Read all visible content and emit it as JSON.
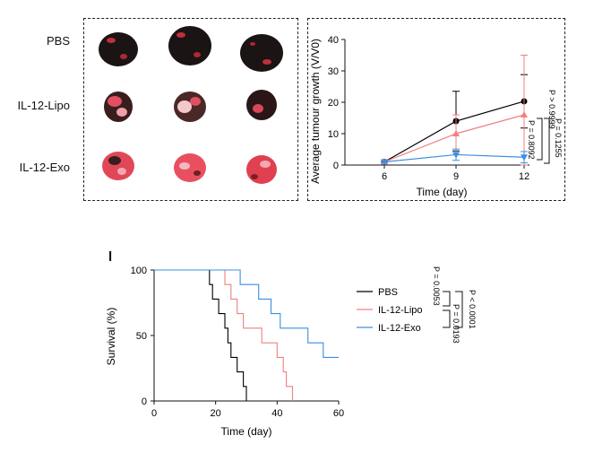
{
  "panel_h": {
    "letter": "",
    "rows": [
      "PBS",
      "IL-12-Lipo",
      "IL-12-Exo"
    ]
  },
  "chart_data": [
    {
      "type": "line",
      "panel": "",
      "ylabel": "Average tumour growth (V/V0)",
      "xlabel": "Time (day)",
      "x": [
        6,
        9,
        12
      ],
      "xticks": [
        "6",
        "9",
        "12"
      ],
      "ylim": [
        0,
        40
      ],
      "yticks": [
        "0",
        "10",
        "20",
        "30",
        "40"
      ],
      "series": [
        {
          "name": "PBS",
          "color": "#000000",
          "marker": "circle",
          "values": [
            1,
            14,
            20.3
          ],
          "err": [
            0.3,
            9.5,
            8.5
          ]
        },
        {
          "name": "IL-12-Lipo",
          "color": "#f08080",
          "marker": "triangle-up",
          "values": [
            1,
            10,
            16
          ],
          "err": [
            0.3,
            6,
            19
          ]
        },
        {
          "name": "IL-12-Exo",
          "color": "#3b8fe0",
          "marker": "triangle-down",
          "values": [
            1,
            3.3,
            2.5
          ],
          "err": [
            0.2,
            1.8,
            1.8
          ]
        }
      ],
      "annotations": [
        "P > 0.9999",
        "P = 0.8092",
        "P = 0.1255"
      ]
    },
    {
      "type": "line",
      "panel": "l",
      "ylabel": "Survival (%)",
      "xlabel": "Time (day)",
      "xlim": [
        0,
        60
      ],
      "ylim": [
        0,
        100
      ],
      "xticks": [
        "0",
        "20",
        "40",
        "60"
      ],
      "yticks": [
        "0",
        "50",
        "100"
      ],
      "legend_placement": "right",
      "series": [
        {
          "name": "PBS",
          "color": "#000000",
          "steps": [
            [
              0,
              100
            ],
            [
              18,
              100
            ],
            [
              18,
              88.9
            ],
            [
              19,
              88.9
            ],
            [
              19,
              77.8
            ],
            [
              21,
              77.8
            ],
            [
              21,
              66.7
            ],
            [
              23,
              66.7
            ],
            [
              23,
              55.6
            ],
            [
              24,
              55.6
            ],
            [
              24,
              44.4
            ],
            [
              25,
              44.4
            ],
            [
              25,
              33.3
            ],
            [
              27,
              33.3
            ],
            [
              27,
              22.2
            ],
            [
              29,
              22.2
            ],
            [
              29,
              11.1
            ],
            [
              30,
              11.1
            ],
            [
              30,
              0
            ]
          ]
        },
        {
          "name": "IL-12-Lipo",
          "color": "#f08080",
          "steps": [
            [
              0,
              100
            ],
            [
              23,
              100
            ],
            [
              23,
              88.9
            ],
            [
              25,
              88.9
            ],
            [
              25,
              77.8
            ],
            [
              27,
              77.8
            ],
            [
              27,
              66.7
            ],
            [
              29,
              66.7
            ],
            [
              29,
              55.6
            ],
            [
              35,
              55.6
            ],
            [
              35,
              44.4
            ],
            [
              40,
              44.4
            ],
            [
              40,
              33.3
            ],
            [
              42,
              33.3
            ],
            [
              42,
              22.2
            ],
            [
              43,
              22.2
            ],
            [
              43,
              11.1
            ],
            [
              45,
              11.1
            ],
            [
              45,
              0
            ]
          ]
        },
        {
          "name": "IL-12-Exo",
          "color": "#3b8fe0",
          "steps": [
            [
              0,
              100
            ],
            [
              28,
              100
            ],
            [
              28,
              88.9
            ],
            [
              34,
              88.9
            ],
            [
              34,
              77.8
            ],
            [
              38,
              77.8
            ],
            [
              38,
              66.7
            ],
            [
              41,
              66.7
            ],
            [
              41,
              55.6
            ],
            [
              50,
              55.6
            ],
            [
              50,
              44.4
            ],
            [
              55,
              44.4
            ],
            [
              55,
              33.3
            ],
            [
              60,
              33.3
            ]
          ]
        }
      ],
      "annotations": [
        "P = 0.0053",
        "P = 0.0193",
        "P < 0.0001"
      ]
    }
  ]
}
